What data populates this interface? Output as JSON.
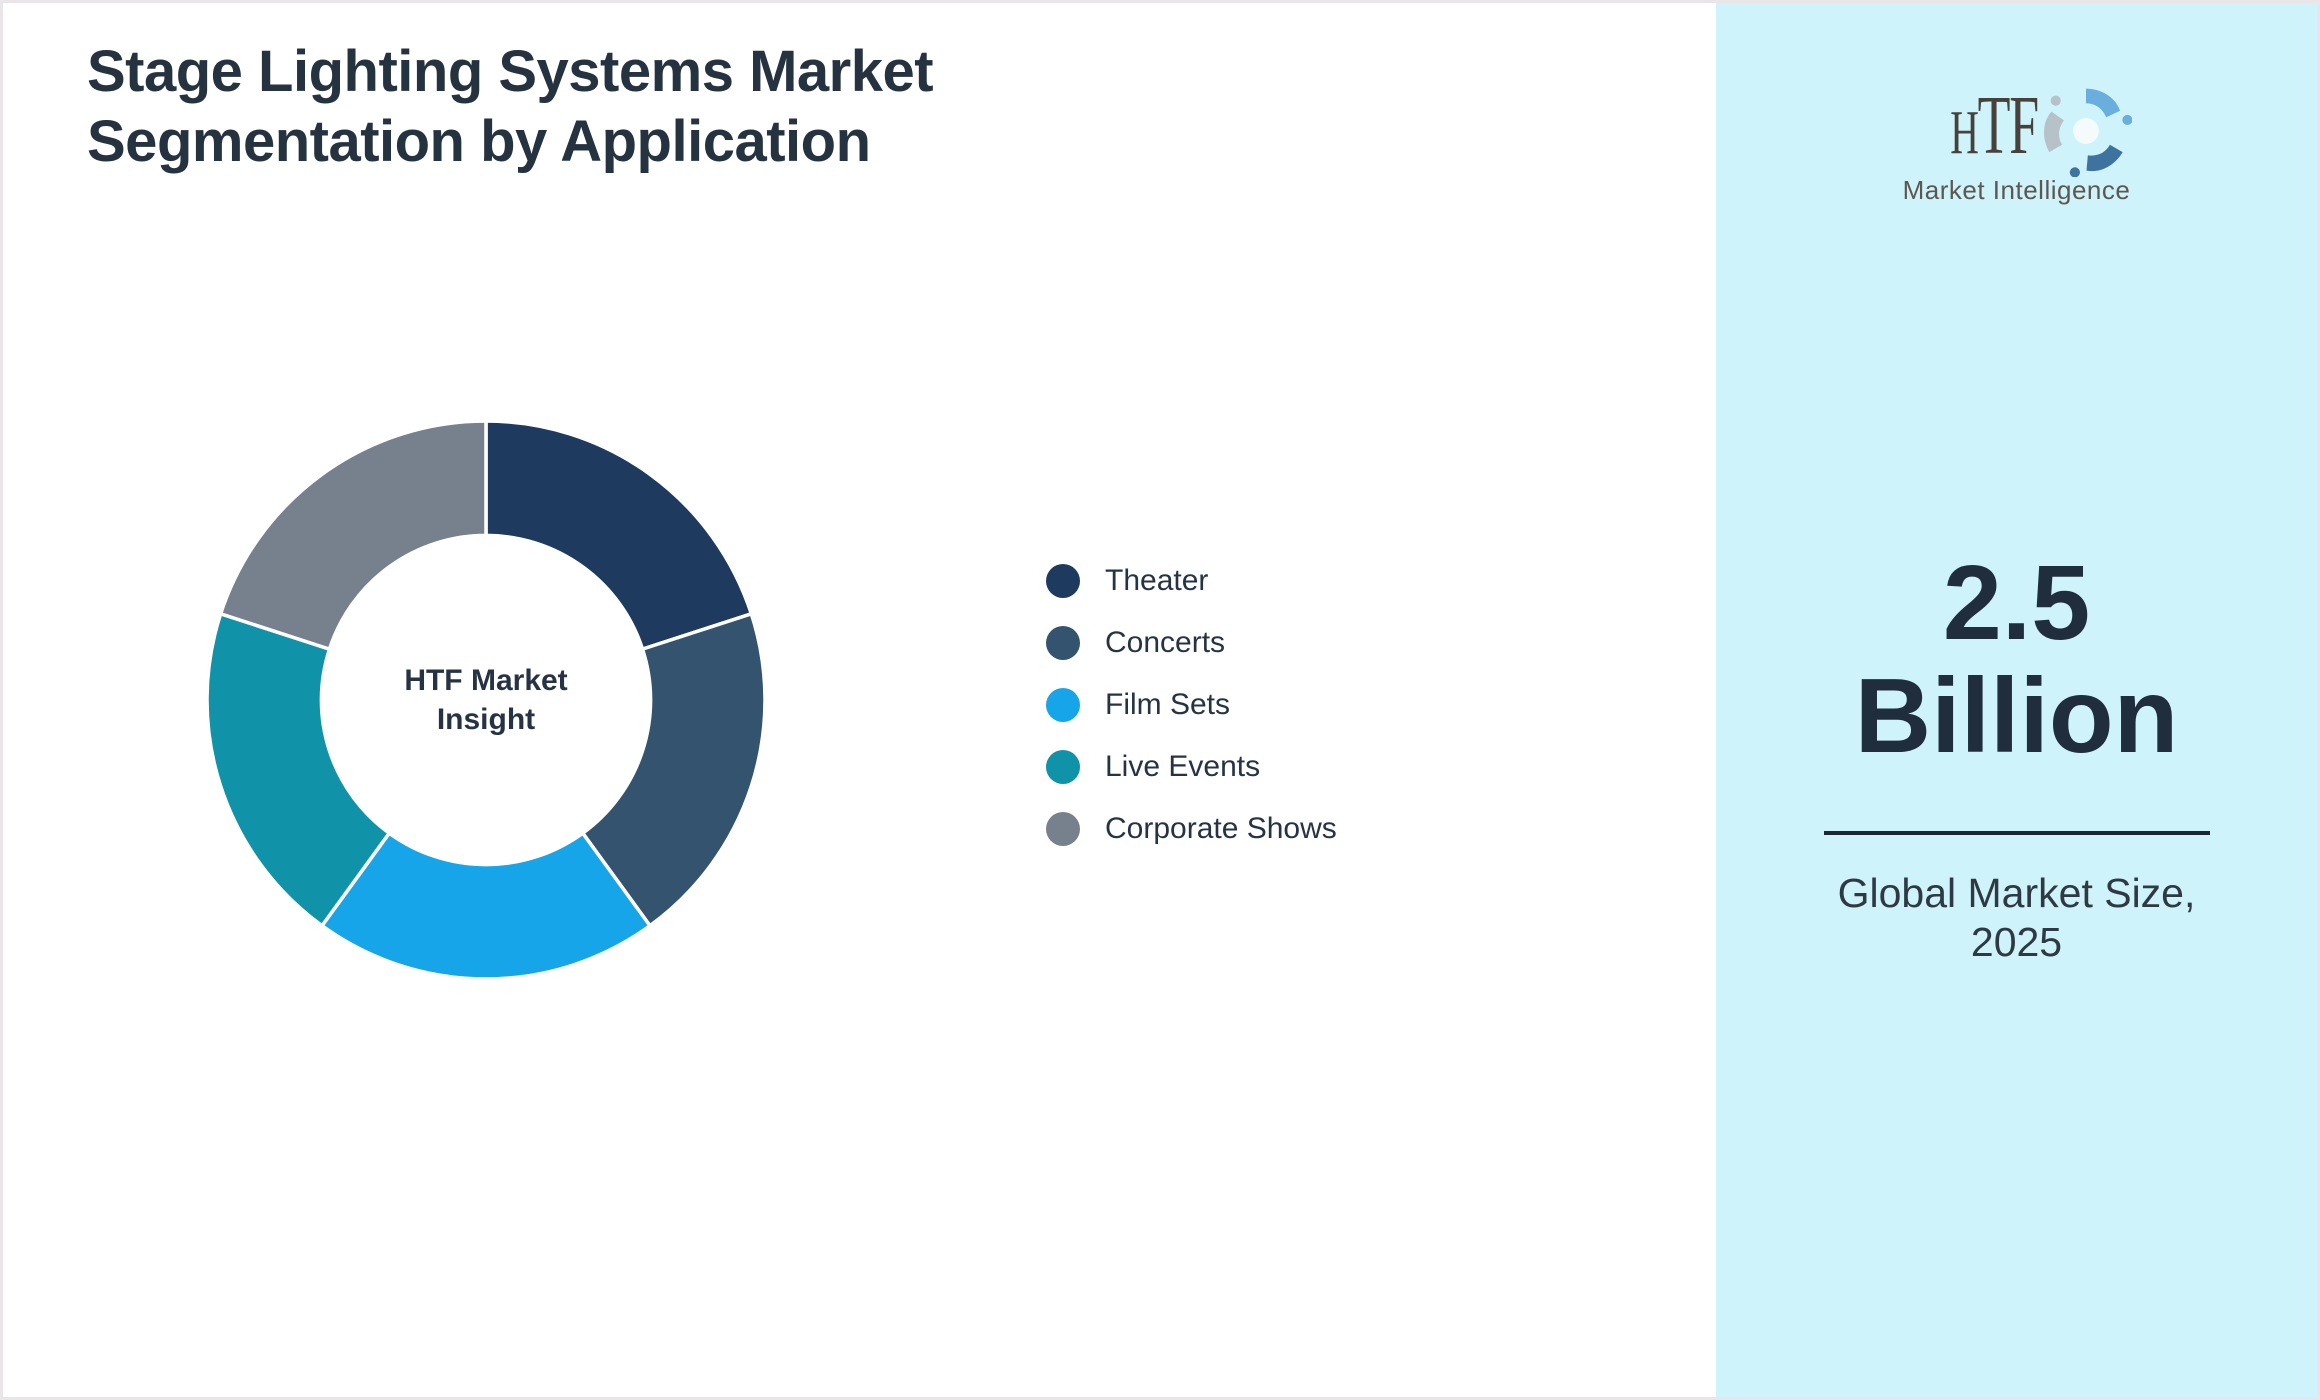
{
  "page": {
    "background": "#ffffff",
    "border_color": "#eae5e9"
  },
  "title": {
    "line1": "Stage Lighting Systems Market",
    "line2": "Segmentation by Application",
    "color": "#253240"
  },
  "chart_data": {
    "type": "pie",
    "subtype": "donut",
    "title": "Stage Lighting Systems Market Segmentation by Application",
    "center_label": "HTF Market Insight",
    "start_angle_deg": 0,
    "direction": "clockwise",
    "inner_radius_ratio": 0.59,
    "legend_position": "right-of-chart",
    "values_labeled_on_chart": false,
    "segments": [
      {
        "label": "Theater",
        "share_percent": 20,
        "color": "#1e3a5f"
      },
      {
        "label": "Concerts",
        "share_percent": 20,
        "color": "#34536e"
      },
      {
        "label": "Film Sets",
        "share_percent": 20,
        "color": "#17a5e9"
      },
      {
        "label": "Live Events",
        "share_percent": 20,
        "color": "#1092a9"
      },
      {
        "label": "Corporate Shows",
        "share_percent": 20,
        "color": "#77808d"
      }
    ]
  },
  "sidebar": {
    "background": "#cff3fa",
    "logo": {
      "text": "HTF",
      "subtext": "Market Intelligence",
      "text_color": "#47413c",
      "dolphin_colors": [
        "#6aaede",
        "#3e729f",
        "#b7c1c8"
      ]
    },
    "market_size": {
      "value": "2.5",
      "unit": "Billion",
      "color": "#1f2d3c"
    },
    "caption": {
      "line1": "Global Market Size,",
      "line2": "2025",
      "color": "#2e3943"
    }
  }
}
